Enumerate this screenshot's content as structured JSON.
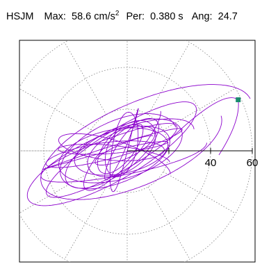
{
  "header": {
    "station": "HSJM",
    "max_label": "Max:",
    "max_value": "58.6 cm/s",
    "max_exponent": "2",
    "per_label": "Per:",
    "per_value": "0.380 s",
    "ang_label": "Ang:",
    "ang_value": "24.7"
  },
  "colors": {
    "trace": "#8B00CC",
    "marker": "#1A8C6E",
    "grid": "#808080",
    "axis": "#000000"
  },
  "chart_data": {
    "type": "polar-orbit",
    "radial_ticks": [
      20,
      40,
      60
    ],
    "radial_tick_labels": [
      "40",
      "60"
    ],
    "grid_angle_step_deg": 30,
    "radial_max": 60,
    "peak": {
      "value": 58.6,
      "angle_deg": 24.7
    },
    "orbit": {
      "description_units": "cm/s^2",
      "components": [
        {
          "major": 40,
          "minor": 10,
          "tilt_deg": 18,
          "cx": -6,
          "cy": -2,
          "turns": 3
        },
        {
          "major": 26,
          "minor": 13,
          "tilt_deg": 10,
          "cx": -4,
          "cy": -1,
          "turns": 5
        },
        {
          "major": 50,
          "minor": 20,
          "tilt_deg": 28,
          "cx": 6,
          "cy": 1,
          "turns": 1
        },
        {
          "major": 30,
          "minor": 6,
          "tilt_deg": -8,
          "cx": -8,
          "cy": 0,
          "turns": 4
        },
        {
          "major": 16,
          "minor": 9,
          "tilt_deg": 40,
          "cx": -2,
          "cy": 1,
          "turns": 6
        }
      ]
    }
  }
}
